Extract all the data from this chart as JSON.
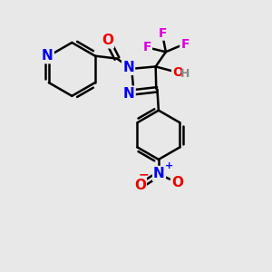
{
  "bg_color": "#e8e8e8",
  "bond_color": "#000000",
  "bond_width": 1.8,
  "atom_colors": {
    "N": "#0000ee",
    "O": "#ee0000",
    "F": "#dd00dd",
    "H": "#555555",
    "C": "#000000"
  },
  "font_size": 11,
  "fig_size": [
    3.0,
    3.0
  ],
  "dpi": 100
}
